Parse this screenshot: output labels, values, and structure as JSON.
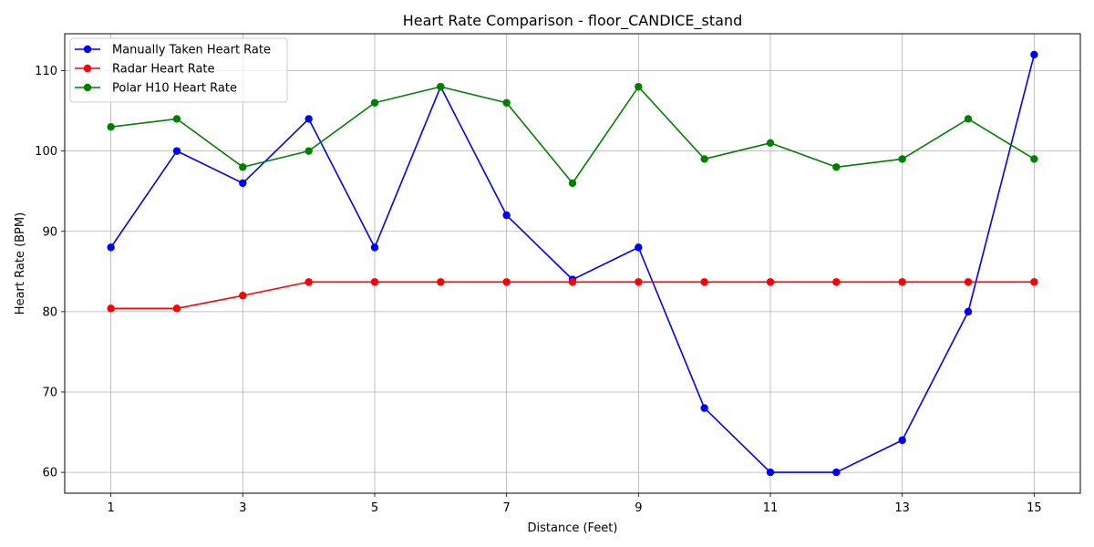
{
  "chart_data": {
    "type": "line",
    "title": "Heart Rate Comparison - floor_CANDICE_stand",
    "xlabel": "Distance (Feet)",
    "ylabel": "Heart Rate (BPM)",
    "x": [
      1,
      2,
      3,
      4,
      5,
      6,
      7,
      8,
      9,
      10,
      11,
      12,
      13,
      14,
      15
    ],
    "xticks": [
      1,
      3,
      5,
      7,
      9,
      11,
      13,
      15
    ],
    "yticks": [
      60,
      70,
      80,
      90,
      100,
      110
    ],
    "xlim": [
      0.3,
      15.7
    ],
    "ylim": [
      57.4,
      114.6
    ],
    "grid": true,
    "legend_position": "top-left",
    "series": [
      {
        "name": "Manually Taken Heart Rate",
        "color": "#0000ff",
        "marker": "circle",
        "values": [
          88,
          100,
          96,
          104,
          88,
          108,
          92,
          84,
          88,
          68,
          60,
          60,
          64,
          80,
          112
        ]
      },
      {
        "name": "Radar Heart Rate",
        "color": "#ff0000",
        "marker": "circle",
        "values": [
          80.4,
          80.4,
          82.0,
          83.7,
          83.7,
          83.7,
          83.7,
          83.7,
          83.7,
          83.7,
          83.7,
          83.7,
          83.7,
          83.7,
          83.7
        ]
      },
      {
        "name": "Polar H10 Heart Rate",
        "color": "#008000",
        "marker": "circle",
        "values": [
          103,
          104,
          98,
          100,
          106,
          108,
          106,
          96,
          108,
          99,
          101,
          98,
          99,
          104,
          99
        ]
      }
    ]
  }
}
